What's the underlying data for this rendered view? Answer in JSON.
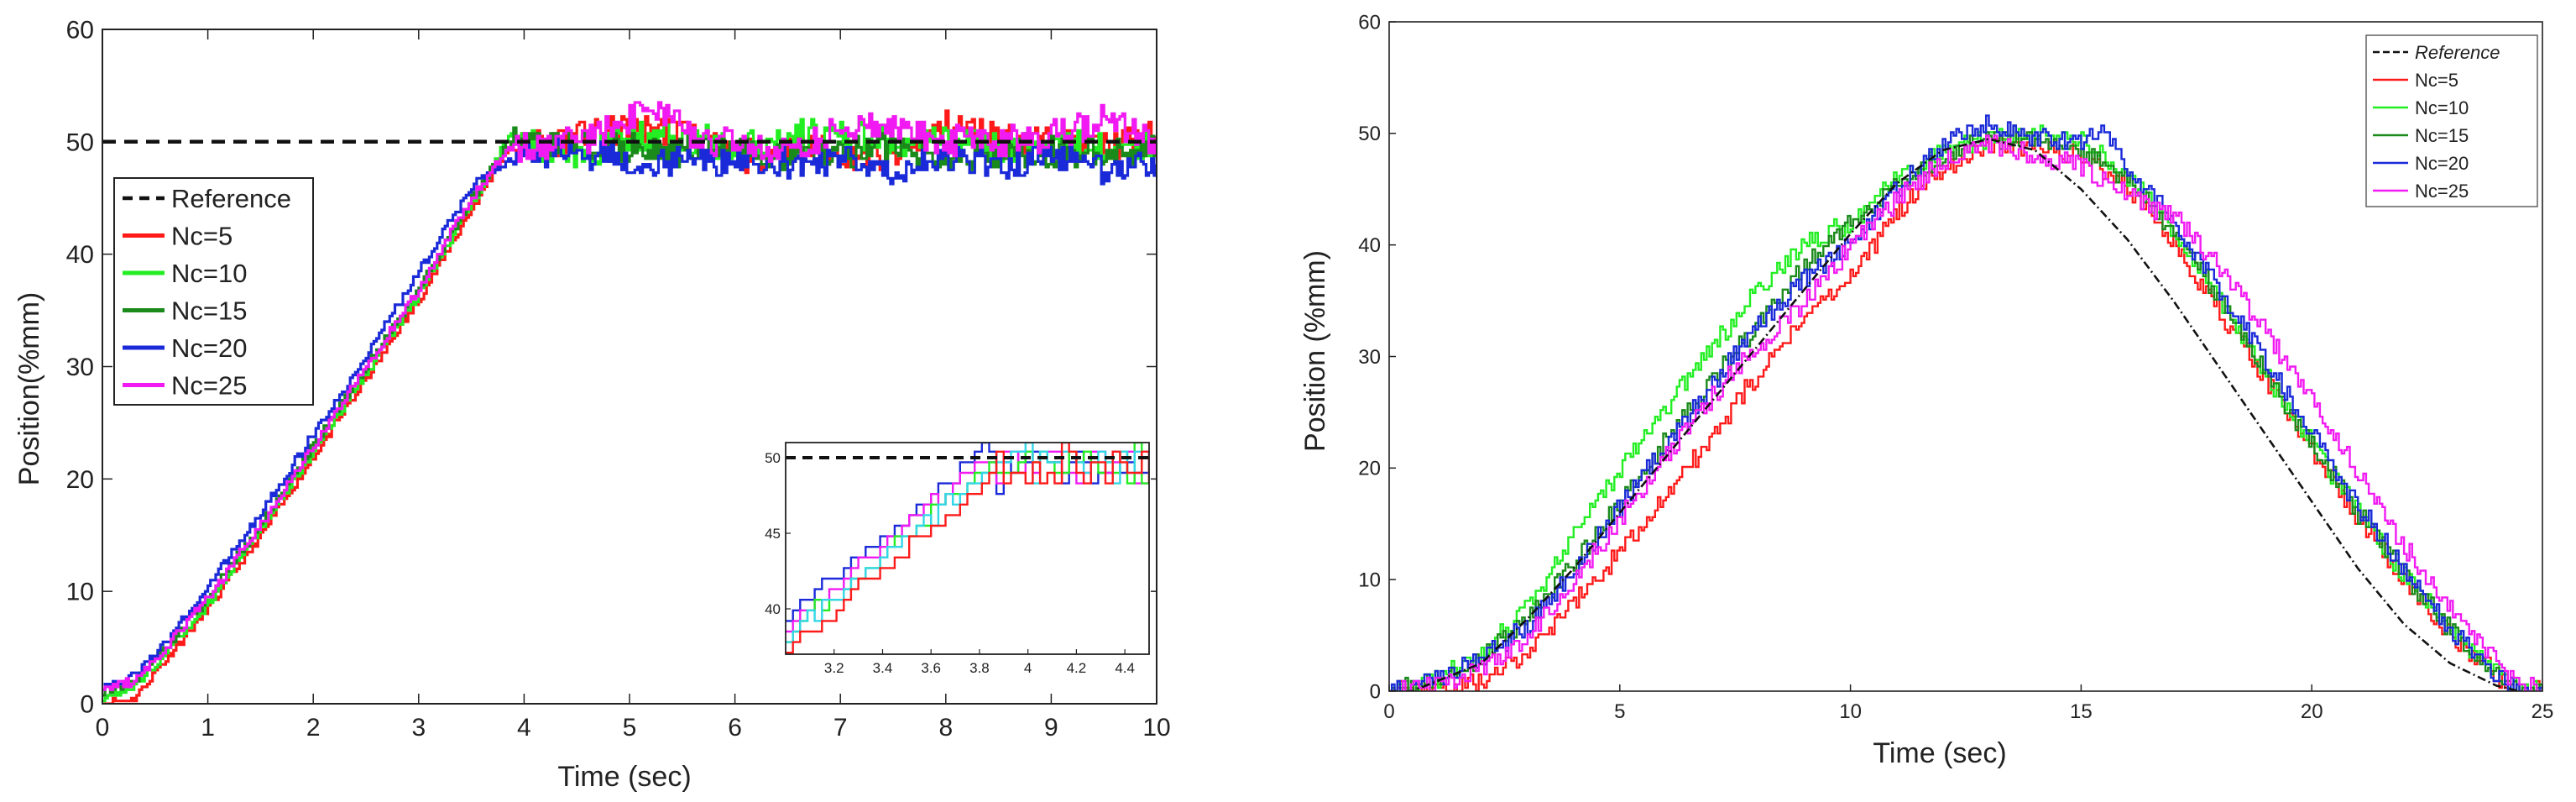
{
  "colors": {
    "reference": "#111111",
    "nc5": "#ff1a1a",
    "nc10": "#22ee22",
    "nc15": "#1a8a1a",
    "nc20": "#1a2ad8",
    "nc25": "#f21af2",
    "inset_cyan": "#33d6e6",
    "axis": "#222222"
  },
  "chart_data": [
    {
      "type": "line",
      "title": "",
      "xlabel": "Time (sec)",
      "ylabel": "Position(%mm)",
      "xlim": [
        0,
        10
      ],
      "ylim": [
        0,
        60
      ],
      "xticks": [
        "0",
        "1",
        "2",
        "3",
        "4",
        "5",
        "6",
        "7",
        "8",
        "9",
        "10"
      ],
      "yticks": [
        "0",
        "10",
        "20",
        "30",
        "40",
        "50",
        "60"
      ],
      "legend": [
        "Reference",
        "Nc=5",
        "Nc=10",
        "Nc=15",
        "Nc=20",
        "Nc=25"
      ],
      "legend_position": "middle-left",
      "series": [
        {
          "name": "Reference",
          "style": "dashed",
          "x": [
            0,
            3.65,
            10
          ],
          "y": [
            50,
            50,
            50
          ]
        },
        {
          "name": "Nc=5",
          "x": [
            0,
            0.3,
            0.6,
            1,
            1.5,
            2,
            2.5,
            3,
            3.5,
            3.85,
            4.5,
            5,
            5.5,
            6,
            6.5,
            7,
            7.5,
            8,
            8.5,
            9,
            9.5,
            10
          ],
          "y": [
            0,
            0.5,
            4,
            8.5,
            15,
            22,
            29,
            36,
            44,
            49.5,
            50.5,
            51,
            51,
            48.5,
            49.5,
            49,
            48.5,
            51.5,
            50.5,
            50,
            49.5,
            50.5
          ]
        },
        {
          "name": "Nc=10",
          "x": [
            0,
            0.3,
            0.6,
            1,
            1.5,
            2,
            2.5,
            3,
            3.5,
            3.85,
            4.5,
            5,
            5.5,
            6,
            6.5,
            7,
            7.5,
            8,
            8.5,
            9,
            9.5,
            10
          ],
          "y": [
            0.5,
            1.5,
            4.5,
            9,
            15.5,
            22.5,
            29.5,
            36.5,
            44.5,
            50.5,
            48.5,
            50.5,
            50.5,
            49.5,
            50.5,
            50.5,
            50,
            50,
            49.5,
            50,
            49.5,
            49.5
          ]
        },
        {
          "name": "Nc=15",
          "x": [
            0,
            0.3,
            0.6,
            1,
            1.5,
            2,
            2.5,
            3,
            3.5,
            3.85,
            4.5,
            5,
            5.5,
            6,
            6.5,
            7,
            7.5,
            8,
            8.5,
            9,
            9.5,
            10
          ],
          "y": [
            1,
            2,
            5,
            9.5,
            16,
            23,
            30,
            37,
            45,
            50,
            49.5,
            49.5,
            49,
            49.5,
            48.5,
            49,
            49.5,
            48.5,
            49,
            49,
            49,
            49.5
          ]
        },
        {
          "name": "Nc=20",
          "x": [
            0,
            0.3,
            0.6,
            1,
            1.5,
            2,
            2.5,
            3,
            3.5,
            3.85,
            4.5,
            5,
            5.5,
            6,
            6.5,
            7,
            7.5,
            8,
            8.5,
            9,
            9.5,
            10
          ],
          "y": [
            1.5,
            2.5,
            5.5,
            10.5,
            17,
            24,
            31,
            38.5,
            46,
            48.5,
            49,
            48.5,
            48,
            48.5,
            48,
            48.5,
            47.5,
            48.5,
            48,
            48.5,
            47.5,
            48
          ]
        },
        {
          "name": "Nc=25",
          "x": [
            0,
            0.3,
            0.6,
            1,
            1.5,
            2,
            2.5,
            3,
            3.5,
            3.85,
            4.5,
            5,
            5.2,
            5.5,
            6,
            6.5,
            7,
            7.5,
            8,
            8.5,
            9,
            9.5,
            10
          ],
          "y": [
            1.5,
            2,
            5,
            9.5,
            16,
            23,
            30,
            37,
            45,
            49.5,
            50,
            52,
            53.5,
            51,
            49.5,
            49,
            51,
            51.5,
            50,
            50,
            50.5,
            52,
            50
          ]
        }
      ],
      "inset": {
        "xlim": [
          3,
          4.5
        ],
        "ylim": [
          37,
          51
        ],
        "xticks": [
          "3.2",
          "3.4",
          "3.6",
          "3.8",
          "4",
          "4.2",
          "4.4"
        ],
        "yticks": [
          "40",
          "45",
          "50"
        ]
      }
    },
    {
      "type": "line",
      "title": "",
      "xlabel": "Time (sec)",
      "ylabel": "Position (%mm)",
      "xlim": [
        0,
        25
      ],
      "ylim": [
        0,
        60
      ],
      "xticks": [
        "0",
        "5",
        "10",
        "15",
        "20",
        "25"
      ],
      "yticks": [
        "0",
        "10",
        "20",
        "30",
        "40",
        "50",
        "60"
      ],
      "legend": [
        "Reference",
        "Nc=5",
        "Nc=10",
        "Nc=15",
        "Nc=20",
        "Nc=25"
      ],
      "legend_position": "top-right",
      "series": [
        {
          "name": "Reference",
          "style": "dash-dot",
          "x": [
            0,
            0.5,
            2,
            3,
            4,
            5,
            6,
            7,
            8,
            9,
            10,
            11,
            12,
            13,
            14,
            15,
            16,
            17,
            18,
            19,
            20,
            21,
            22,
            23,
            24,
            24.5
          ],
          "y": [
            0,
            0,
            2.5,
            6.5,
            11,
            16,
            21,
            26,
            31,
            36,
            41,
            45.5,
            48.5,
            49.5,
            48.5,
            45,
            40.5,
            35,
            29,
            23,
            17,
            11,
            6,
            2.5,
            0.5,
            0
          ]
        },
        {
          "name": "Nc=5",
          "x": [
            0,
            1,
            2,
            3,
            4,
            5,
            6,
            7,
            8,
            9,
            10,
            11,
            12,
            13,
            14,
            15,
            16,
            17,
            18,
            19,
            20,
            21,
            22,
            23,
            24,
            24.5,
            25
          ],
          "y": [
            0,
            0,
            1,
            3.5,
            8,
            12.5,
            17.5,
            23,
            28.5,
            33.5,
            37,
            43,
            47,
            49,
            49,
            48,
            45,
            40,
            34,
            28,
            21.5,
            15.5,
            10,
            5,
            1.5,
            0,
            0
          ]
        },
        {
          "name": "Nc=10",
          "x": [
            0,
            1,
            2,
            3,
            4,
            5,
            6,
            7,
            8,
            9,
            10,
            11,
            12,
            13,
            14,
            15,
            16,
            17,
            18,
            19,
            20,
            21,
            22,
            23,
            24,
            24.5,
            25
          ],
          "y": [
            0,
            1,
            3.5,
            7.5,
            14,
            20,
            25.5,
            31,
            36,
            40,
            42,
            46,
            48.5,
            49.5,
            50,
            49.5,
            46,
            41.5,
            35,
            28.5,
            22,
            16,
            10.5,
            5.5,
            1.5,
            0,
            0
          ]
        },
        {
          "name": "Nc=15",
          "x": [
            0,
            1,
            2,
            3,
            4,
            5,
            6,
            7,
            8,
            9,
            10,
            11,
            12,
            13,
            14,
            15,
            16,
            17,
            18,
            19,
            20,
            21,
            22,
            23,
            24,
            24.5,
            25
          ],
          "y": [
            0,
            1,
            3,
            6.5,
            11.5,
            17,
            22.5,
            28,
            33,
            38,
            42,
            45.5,
            48,
            49.5,
            49.5,
            48.5,
            46,
            41,
            35,
            28.5,
            22,
            16,
            10.5,
            5.5,
            1.5,
            0,
            0
          ]
        },
        {
          "name": "Nc=20",
          "x": [
            0,
            1,
            2,
            3,
            4,
            5,
            6,
            7,
            8,
            9,
            10,
            11,
            12,
            13,
            14,
            15,
            15.5,
            16,
            17,
            18,
            19,
            20,
            21,
            22,
            23,
            24,
            24.5,
            25
          ],
          "y": [
            0,
            1,
            3,
            6,
            11,
            16.5,
            22,
            27.5,
            33,
            37,
            40,
            45,
            49,
            51,
            49.5,
            49,
            50.5,
            47,
            42,
            36,
            29.5,
            23,
            16.5,
            11,
            5.5,
            1.5,
            0,
            0
          ]
        },
        {
          "name": "Nc=25",
          "x": [
            0,
            1,
            2,
            3,
            4,
            5,
            6,
            7,
            8,
            9,
            10,
            11,
            12,
            13,
            14,
            15,
            16,
            17,
            18,
            19,
            20,
            21,
            22,
            23,
            24,
            24.5,
            25
          ],
          "y": [
            0,
            0.5,
            2,
            5,
            10,
            15.5,
            21,
            26.5,
            31,
            35,
            40,
            44,
            47.5,
            49,
            48,
            47,
            44.5,
            42.5,
            38,
            32,
            26,
            19.5,
            13,
            7.5,
            2.5,
            0.5,
            0
          ]
        }
      ]
    }
  ]
}
